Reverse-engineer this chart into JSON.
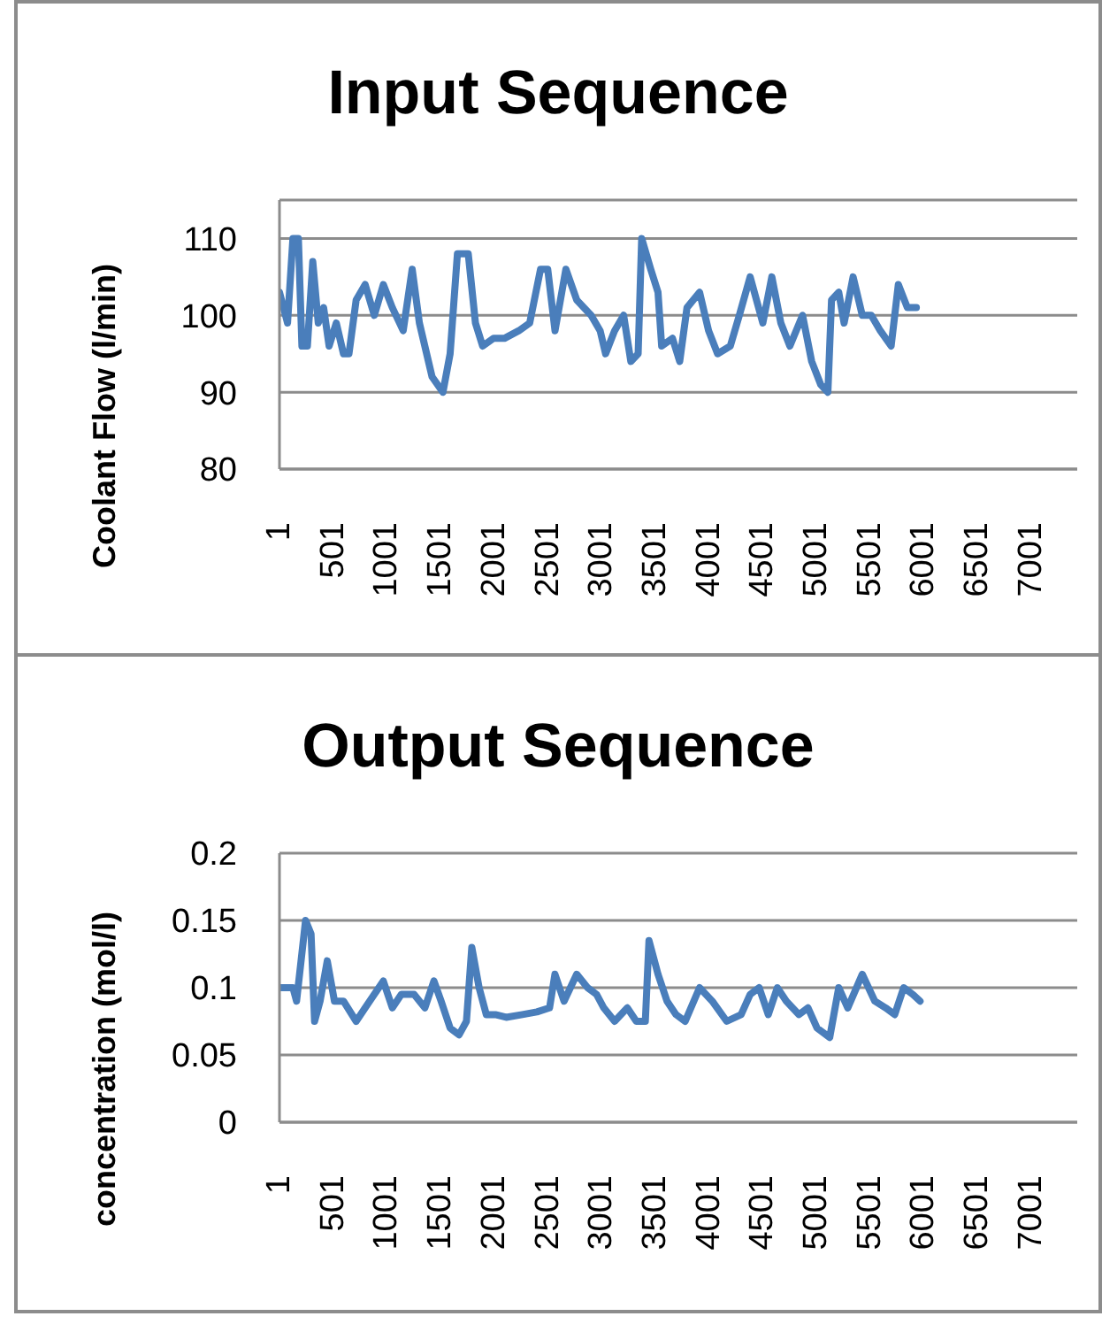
{
  "chart_data": [
    {
      "type": "line",
      "title": "Input Sequence",
      "ylabel": "Coolant Flow (l/min)",
      "grid": "y",
      "xlim": [
        1,
        7430
      ],
      "xticks": [
        1,
        501,
        1001,
        1501,
        2001,
        2501,
        3001,
        3501,
        4001,
        4501,
        5001,
        5501,
        6001,
        6501,
        7001
      ],
      "ylim": [
        80,
        115
      ],
      "yticks": [
        80,
        90,
        100,
        110
      ],
      "x": [
        1,
        76,
        126,
        177,
        210,
        261,
        311,
        362,
        412,
        463,
        530,
        597,
        648,
        715,
        799,
        884,
        968,
        1052,
        1153,
        1237,
        1304,
        1422,
        1523,
        1590,
        1658,
        1759,
        1826,
        1893,
        1994,
        2095,
        2230,
        2331,
        2432,
        2499,
        2567,
        2668,
        2769,
        2903,
        2987,
        3038,
        3122,
        3206,
        3273,
        3341,
        3374,
        3458,
        3526,
        3560,
        3661,
        3728,
        3796,
        3913,
        3997,
        4081,
        4199,
        4283,
        4384,
        4502,
        4586,
        4670,
        4754,
        4872,
        4957,
        5041,
        5108,
        5142,
        5209,
        5259,
        5343,
        5428,
        5512,
        5596,
        5697,
        5764,
        5848,
        5932
      ],
      "series": [
        {
          "color": "#4a7ebb",
          "values": [
            103,
            99,
            110,
            110,
            96,
            96,
            107,
            99,
            101,
            96,
            99,
            95,
            95,
            102,
            104,
            100,
            104,
            101,
            98,
            106,
            99,
            92,
            90,
            95,
            108,
            108,
            99,
            96,
            97,
            97,
            98,
            99,
            106,
            106,
            98,
            106,
            102,
            100,
            98,
            95,
            98,
            100,
            94,
            95,
            110,
            106,
            103,
            96,
            97,
            94,
            101,
            103,
            98,
            95,
            96,
            100,
            105,
            99,
            105,
            99,
            96,
            100,
            94,
            91,
            90,
            102,
            103,
            99,
            105,
            100,
            100,
            98,
            96,
            104,
            101,
            101
          ]
        }
      ]
    },
    {
      "type": "line",
      "title": "Output Sequence",
      "ylabel": "concentration (mol/l)",
      "grid": "y",
      "xlim": [
        1,
        7430
      ],
      "xticks": [
        1,
        501,
        1001,
        1501,
        2001,
        2501,
        3001,
        3501,
        4001,
        4501,
        5001,
        5501,
        6001,
        6501,
        7001
      ],
      "ylim": [
        0,
        0.2
      ],
      "yticks": [
        0,
        0.05,
        0.1,
        0.15,
        0.2
      ],
      "x": [
        1,
        126,
        160,
        244,
        295,
        328,
        379,
        446,
        513,
        597,
        715,
        799,
        884,
        968,
        1052,
        1136,
        1254,
        1355,
        1439,
        1506,
        1590,
        1674,
        1742,
        1792,
        1860,
        1927,
        2011,
        2112,
        2263,
        2398,
        2516,
        2566,
        2651,
        2769,
        2870,
        2954,
        3021,
        3122,
        3240,
        3324,
        3408,
        3442,
        3526,
        3610,
        3694,
        3779,
        3913,
        4031,
        4166,
        4300,
        4384,
        4468,
        4553,
        4637,
        4721,
        4839,
        4923,
        5007,
        5125,
        5209,
        5293,
        5428,
        5545,
        5646,
        5730,
        5814,
        5899,
        5966
      ],
      "series": [
        {
          "color": "#4a7ebb",
          "values": [
            0.1,
            0.1,
            0.09,
            0.15,
            0.14,
            0.075,
            0.09,
            0.12,
            0.09,
            0.09,
            0.075,
            0.085,
            0.095,
            0.105,
            0.085,
            0.095,
            0.095,
            0.085,
            0.105,
            0.09,
            0.07,
            0.065,
            0.075,
            0.13,
            0.1,
            0.08,
            0.08,
            0.078,
            0.08,
            0.082,
            0.085,
            0.11,
            0.09,
            0.11,
            0.1,
            0.095,
            0.085,
            0.075,
            0.085,
            0.075,
            0.075,
            0.135,
            0.11,
            0.09,
            0.08,
            0.075,
            0.1,
            0.09,
            0.075,
            0.08,
            0.095,
            0.1,
            0.08,
            0.1,
            0.09,
            0.08,
            0.085,
            0.07,
            0.063,
            0.1,
            0.085,
            0.11,
            0.09,
            0.085,
            0.08,
            0.1,
            0.095,
            0.09
          ]
        }
      ]
    }
  ]
}
